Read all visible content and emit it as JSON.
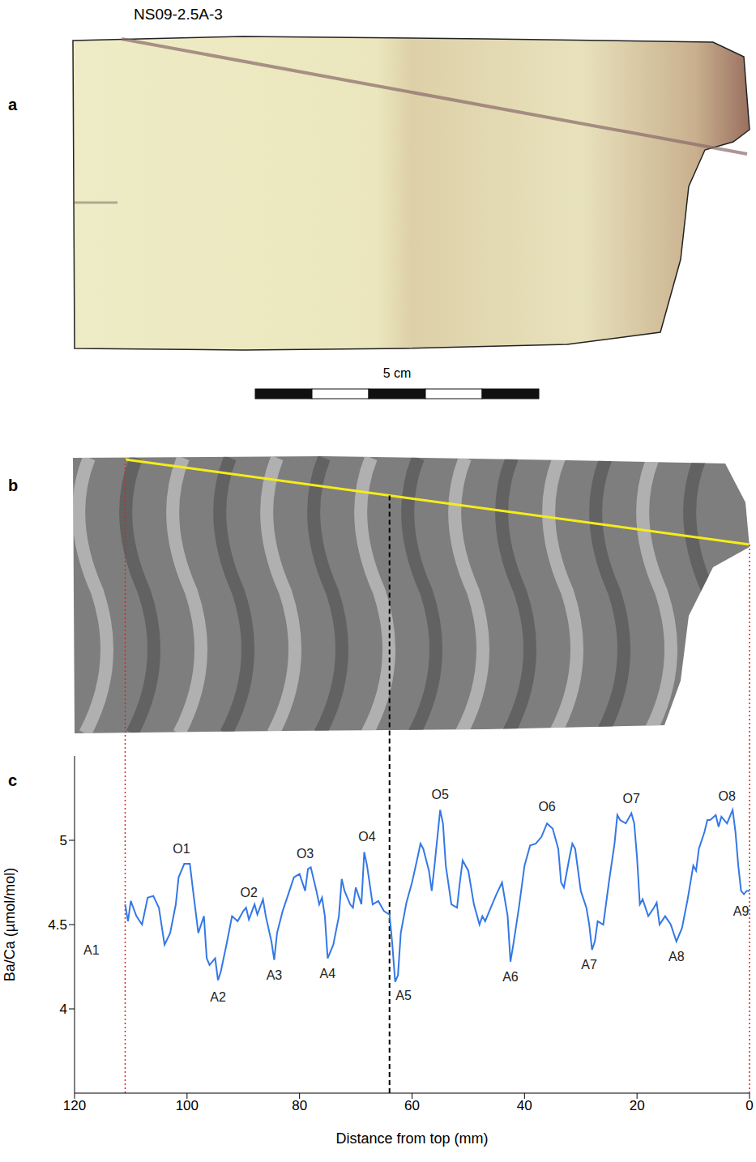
{
  "figure": {
    "sample_id": "NS09-2.5A-3",
    "panel_labels": [
      "a",
      "b",
      "c"
    ],
    "scale_bar": "5 cm"
  },
  "chart_data": {
    "type": "line",
    "xlabel": "Distance from top (mm)",
    "ylabel": "Ba/Ca (µmol/mol)",
    "xlim": [
      120,
      0
    ],
    "xticks": [
      120,
      100,
      80,
      60,
      40,
      20,
      0
    ],
    "ylim": [
      3.5,
      5.5
    ],
    "yticks": [
      4,
      4.5,
      5
    ],
    "grid": false,
    "color": "#3478e6",
    "x": [
      111,
      110.5,
      110,
      109,
      108,
      107,
      106,
      105,
      104,
      103,
      102,
      101.5,
      100.5,
      99.5,
      99,
      98,
      97,
      96.5,
      96,
      95,
      94.5,
      94,
      93,
      92,
      91,
      90,
      89.5,
      89,
      88,
      87.5,
      86.5,
      86,
      85,
      84.5,
      84,
      83,
      82,
      81,
      80,
      79,
      78.5,
      78,
      77,
      76.5,
      76,
      75.5,
      75,
      74,
      73,
      72.5,
      72,
      71,
      70.5,
      70,
      69,
      68.5,
      68,
      67,
      66,
      65,
      64,
      63.5,
      63,
      62.5,
      62,
      61,
      60,
      59,
      58.5,
      58,
      57,
      56.5,
      56,
      55,
      54.5,
      54,
      53,
      52,
      51.5,
      51,
      50,
      49,
      48,
      47.5,
      47,
      46,
      45,
      44,
      43,
      42.5,
      42,
      41,
      40,
      39,
      38,
      37,
      36,
      35,
      34,
      33.5,
      33,
      32,
      31.5,
      31,
      30,
      29,
      28.5,
      28,
      27.5,
      27,
      26,
      25,
      24,
      23.5,
      23,
      22,
      21,
      20.5,
      20,
      19.5,
      19,
      18,
      17,
      16.5,
      16,
      15,
      14,
      13,
      12,
      11,
      10,
      9.5,
      9,
      8,
      7.5,
      7,
      6,
      5.5,
      5,
      4,
      3,
      2.5,
      2,
      1.5,
      1,
      0.5,
      0
    ],
    "values": [
      4.62,
      4.52,
      4.64,
      4.55,
      4.5,
      4.66,
      4.67,
      4.6,
      4.38,
      4.45,
      4.62,
      4.78,
      4.86,
      4.86,
      4.72,
      4.45,
      4.55,
      4.3,
      4.26,
      4.3,
      4.17,
      4.22,
      4.38,
      4.55,
      4.52,
      4.58,
      4.6,
      4.53,
      4.62,
      4.56,
      4.65,
      4.55,
      4.4,
      4.29,
      4.45,
      4.58,
      4.68,
      4.78,
      4.8,
      4.7,
      4.83,
      4.84,
      4.7,
      4.62,
      4.66,
      4.55,
      4.3,
      4.38,
      4.55,
      4.77,
      4.7,
      4.62,
      4.6,
      4.72,
      4.62,
      4.93,
      4.85,
      4.62,
      4.64,
      4.58,
      4.56,
      4.38,
      4.16,
      4.2,
      4.45,
      4.63,
      4.75,
      4.9,
      4.98,
      4.95,
      4.82,
      4.7,
      4.85,
      5.18,
      5.1,
      4.85,
      4.62,
      4.6,
      4.75,
      4.88,
      4.82,
      4.62,
      4.5,
      4.55,
      4.52,
      4.6,
      4.68,
      4.75,
      4.55,
      4.28,
      4.38,
      4.6,
      4.85,
      4.97,
      4.98,
      5.02,
      5.1,
      5.07,
      4.95,
      4.75,
      4.72,
      4.9,
      4.98,
      4.95,
      4.7,
      4.6,
      4.5,
      4.35,
      4.4,
      4.52,
      4.5,
      4.75,
      4.98,
      5.15,
      5.12,
      5.1,
      5.16,
      5.1,
      4.9,
      4.62,
      4.65,
      4.55,
      4.6,
      4.63,
      4.5,
      4.55,
      4.5,
      4.4,
      4.48,
      4.65,
      4.85,
      4.82,
      4.95,
      5.05,
      5.12,
      5.12,
      5.15,
      5.08,
      5.14,
      5.1,
      5.18,
      5.05,
      4.85,
      4.7,
      4.68,
      4.7,
      4.7
    ],
    "annotations": [
      {
        "text": "A1",
        "x": 117,
        "y": 4.35
      },
      {
        "text": "O1",
        "x": 101,
        "y": 4.95
      },
      {
        "text": "A2",
        "x": 94.5,
        "y": 4.07
      },
      {
        "text": "O2",
        "x": 89,
        "y": 4.69
      },
      {
        "text": "A3",
        "x": 84.5,
        "y": 4.2
      },
      {
        "text": "O3",
        "x": 79,
        "y": 4.92
      },
      {
        "text": "A4",
        "x": 75,
        "y": 4.21
      },
      {
        "text": "O4",
        "x": 68,
        "y": 5.02
      },
      {
        "text": "A5",
        "x": 61.5,
        "y": 4.08
      },
      {
        "text": "O5",
        "x": 55,
        "y": 5.27
      },
      {
        "text": "A6",
        "x": 42.5,
        "y": 4.19
      },
      {
        "text": "O6",
        "x": 36,
        "y": 5.2
      },
      {
        "text": "A7",
        "x": 28.5,
        "y": 4.26
      },
      {
        "text": "O7",
        "x": 21,
        "y": 5.25
      },
      {
        "text": "A8",
        "x": 13,
        "y": 4.31
      },
      {
        "text": "O8",
        "x": 4,
        "y": 5.26
      },
      {
        "text": "A9",
        "x": 1.5,
        "y": 4.58
      }
    ],
    "reference_lines": [
      {
        "x": 111,
        "color": "#e02020",
        "line_style": "dotted"
      },
      {
        "x": 64,
        "color": "#000000",
        "line_style": "dashed"
      },
      {
        "x": 0,
        "color": "#e02020",
        "line_style": "dotted"
      }
    ]
  }
}
